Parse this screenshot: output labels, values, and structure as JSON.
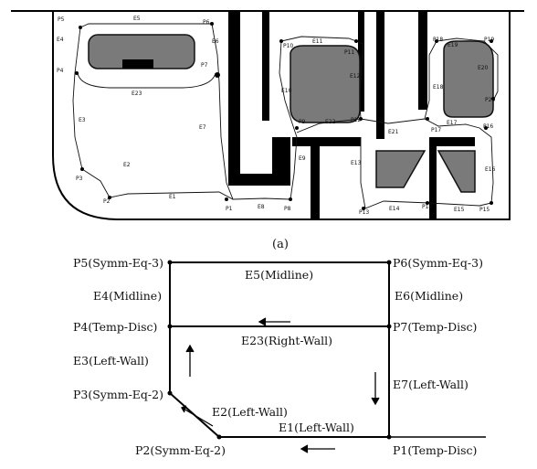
{
  "map": {
    "caption": "(a)",
    "node_labels": [
      "P1",
      "P2",
      "P3",
      "P4",
      "P5",
      "P6",
      "P7",
      "P8",
      "P9",
      "P10",
      "P11",
      "P12",
      "P13",
      "P14",
      "P15",
      "P16",
      "P17",
      "P18",
      "P19",
      "P20"
    ],
    "edge_labels": [
      "E1",
      "E2",
      "E3",
      "E4",
      "E5",
      "E6",
      "E7",
      "E8",
      "E9",
      "E10",
      "E11",
      "E12",
      "E13",
      "E14",
      "E15",
      "E16",
      "E17",
      "E18",
      "E19",
      "E20",
      "E21",
      "E22",
      "E23"
    ]
  },
  "graph": {
    "nodes": {
      "p5": "P5(Symm-Eq-3)",
      "p6": "P6(Symm-Eq-3)",
      "p4": "P4(Temp-Disc)",
      "p7": "P7(Temp-Disc)",
      "p3": "P3(Symm-Eq-2)",
      "p2": "P2(Symm-Eq-2)",
      "p1": "P1(Temp-Disc)"
    },
    "edges": {
      "e5": "E5(Midline)",
      "e4": "E4(Midline)",
      "e6": "E6(Midline)",
      "e23": "E23(Right-Wall)",
      "e3": "E3(Left-Wall)",
      "e7": "E7(Left-Wall)",
      "e2": "E2(Left-Wall)",
      "e1": "E1(Left-Wall)"
    }
  }
}
